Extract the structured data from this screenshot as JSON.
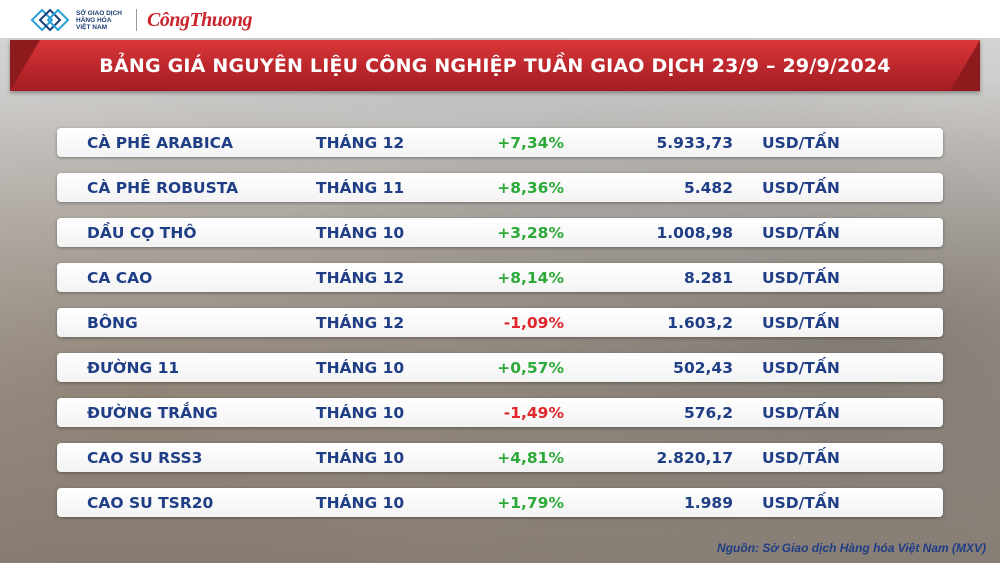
{
  "header": {
    "org_logo_lines": [
      "SỞ GIAO DỊCH",
      "HÀNG HÓA",
      "VIỆT NAM"
    ],
    "brand": "CôngThuong"
  },
  "title": "BẢNG GIÁ NGUYÊN LIỆU CÔNG NGHIỆP TUẦN GIAO DỊCH 23/9 – 29/9/2024",
  "colors": {
    "banner_red": "#c9242b",
    "text_blue": "#1f3e86",
    "up_green": "#2eaa3a",
    "down_red": "#e0262b"
  },
  "rows": [
    {
      "name": "CÀ PHÊ ARABICA",
      "month": "THÁNG 12",
      "change": "+7,34%",
      "direction": "up",
      "price": "5.933,73",
      "unit": "USD/TẤN"
    },
    {
      "name": "CÀ PHÊ ROBUSTA",
      "month": "THÁNG 11",
      "change": "+8,36%",
      "direction": "up",
      "price": "5.482",
      "unit": "USD/TẤN"
    },
    {
      "name": "DẦU CỌ THÔ",
      "month": "THÁNG 10",
      "change": "+3,28%",
      "direction": "up",
      "price": "1.008,98",
      "unit": "USD/TẤN"
    },
    {
      "name": "CA CAO",
      "month": "THÁNG 12",
      "change": "+8,14%",
      "direction": "up",
      "price": "8.281",
      "unit": "USD/TẤN"
    },
    {
      "name": "BÔNG",
      "month": "THÁNG 12",
      "change": "-1,09%",
      "direction": "down",
      "price": "1.603,2",
      "unit": "USD/TẤN"
    },
    {
      "name": "ĐƯỜNG 11",
      "month": "THÁNG 10",
      "change": "+0,57%",
      "direction": "up",
      "price": "502,43",
      "unit": "USD/TẤN"
    },
    {
      "name": "ĐƯỜNG TRẮNG",
      "month": "THÁNG 10",
      "change": "-1,49%",
      "direction": "down",
      "price": "576,2",
      "unit": "USD/TẤN"
    },
    {
      "name": "CAO SU RSS3",
      "month": "THÁNG 10",
      "change": "+4,81%",
      "direction": "up",
      "price": "2.820,17",
      "unit": "USD/TẤN"
    },
    {
      "name": "CAO SU TSR20",
      "month": "THÁNG 10",
      "change": "+1,79%",
      "direction": "up",
      "price": "1.989",
      "unit": "USD/TẤN"
    }
  ],
  "source": "Nguồn: Sở Giao dịch Hàng hóa Việt Nam (MXV)"
}
